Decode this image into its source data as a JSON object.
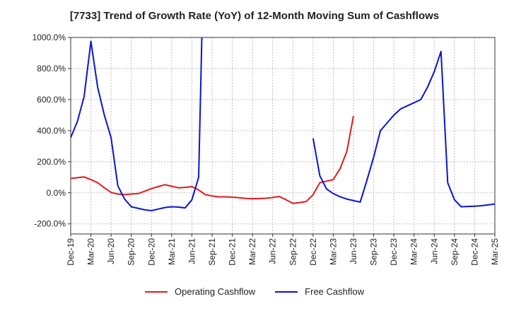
{
  "chart_data": {
    "type": "line",
    "title": "[7733]  Trend of Growth Rate (YoY) of 12-Month Moving Sum of Cashflows",
    "xlabel": "",
    "ylabel": "",
    "x_tick_labels": [
      "Dec-19",
      "Mar-20",
      "Jun-20",
      "Sep-20",
      "Dec-20",
      "Mar-21",
      "Jun-21",
      "Sep-21",
      "Dec-21",
      "Mar-22",
      "Jun-22",
      "Sep-22",
      "Dec-22",
      "Mar-23",
      "Jun-23",
      "Sep-23",
      "Dec-23",
      "Mar-24",
      "Jun-24",
      "Sep-24",
      "Dec-24",
      "Mar-25"
    ],
    "y_tick_labels": [
      "1000.0%",
      "800.0%",
      "600.0%",
      "400.0%",
      "200.0%",
      "0.0%",
      "-200.0%"
    ],
    "y_ticks": [
      1000,
      800,
      600,
      400,
      200,
      0,
      -200
    ],
    "ylim": [
      -265,
      1000
    ],
    "grid": true,
    "legend_position": "bottom",
    "series": [
      {
        "name": "Operating Cashflow",
        "color": "#e31a1c",
        "values": [
          92,
          97,
          102,
          85,
          65,
          32,
          2,
          -8,
          -12,
          -8,
          -5,
          10,
          27,
          40,
          52,
          42,
          32,
          35,
          40,
          18,
          -12,
          -20,
          -26,
          -26,
          -28,
          -32,
          -36,
          -38,
          -37,
          -35,
          -30,
          -24,
          -45,
          -68,
          -63,
          -56,
          -12,
          65,
          75,
          85,
          155,
          265,
          495
        ]
      },
      {
        "name": "Free Cashflow",
        "color": "#0a14d2",
        "values": [
          355,
          460,
          620,
          975,
          680,
          500,
          355,
          45,
          -40,
          -90,
          -100,
          -110,
          -115,
          -105,
          -95,
          -90,
          -92,
          -97,
          -45,
          100,
          2000,
          null,
          null,
          null,
          null,
          null,
          null,
          null,
          null,
          null,
          null,
          null,
          null,
          null,
          null,
          null,
          350,
          110,
          25,
          -5,
          -25,
          -40,
          -50,
          -60,
          80,
          230,
          400,
          450,
          500,
          540,
          560,
          580,
          600,
          680,
          780,
          910,
          65,
          -45,
          -90,
          -88,
          -86,
          -83,
          -78,
          -72
        ]
      }
    ]
  },
  "legend": [
    {
      "label": "Operating Cashflow",
      "color": "#e31a1c"
    },
    {
      "label": "Free Cashflow",
      "color": "#0a14d2"
    }
  ]
}
